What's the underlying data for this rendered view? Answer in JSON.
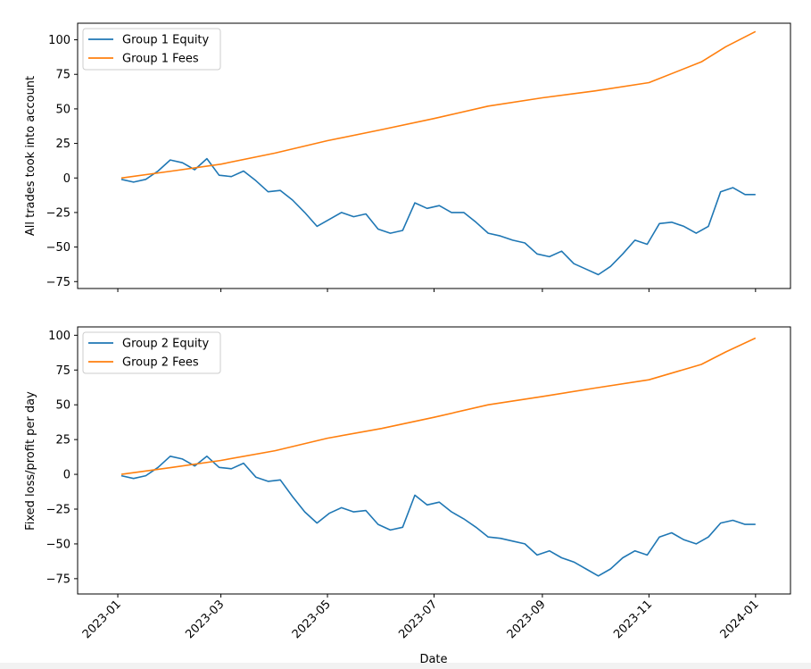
{
  "chart_data": [
    {
      "type": "line",
      "ylabel": "All trades took into account",
      "xlabel": "",
      "ylim": [
        -80,
        112
      ],
      "yticks": [
        "100",
        "75",
        "50",
        "25",
        "0",
        "−25",
        "−50",
        "−75"
      ],
      "legend_position": "upper-left",
      "grid": false,
      "series": [
        {
          "name": "Group 1 Equity",
          "color": "#1f77b4",
          "x": [
            "2023-01-03",
            "2023-01-10",
            "2023-01-17",
            "2023-01-24",
            "2023-01-31",
            "2023-02-07",
            "2023-02-14",
            "2023-02-21",
            "2023-02-28",
            "2023-03-07",
            "2023-03-14",
            "2023-03-21",
            "2023-03-28",
            "2023-04-04",
            "2023-04-11",
            "2023-04-18",
            "2023-04-25",
            "2023-05-02",
            "2023-05-09",
            "2023-05-16",
            "2023-05-23",
            "2023-05-30",
            "2023-06-06",
            "2023-06-13",
            "2023-06-20",
            "2023-06-27",
            "2023-07-04",
            "2023-07-11",
            "2023-07-18",
            "2023-07-25",
            "2023-08-01",
            "2023-08-08",
            "2023-08-15",
            "2023-08-22",
            "2023-08-29",
            "2023-09-05",
            "2023-09-12",
            "2023-09-19",
            "2023-09-26",
            "2023-10-03",
            "2023-10-10",
            "2023-10-17",
            "2023-10-24",
            "2023-10-31",
            "2023-11-07",
            "2023-11-14",
            "2023-11-21",
            "2023-11-28",
            "2023-12-05",
            "2023-12-12",
            "2023-12-19",
            "2023-12-26",
            "2024-01-01"
          ],
          "values": [
            -1,
            -3,
            -1,
            5,
            13,
            11,
            6,
            14,
            2,
            1,
            5,
            -2,
            -10,
            -9,
            -16,
            -25,
            -35,
            -30,
            -25,
            -28,
            -26,
            -37,
            -40,
            -38,
            -18,
            -22,
            -20,
            -25,
            -25,
            -32,
            -40,
            -42,
            -45,
            -47,
            -55,
            -57,
            -53,
            -62,
            -66,
            -70,
            -64,
            -55,
            -45,
            -48,
            -33,
            -32,
            -35,
            -40,
            -35,
            -10,
            -7,
            -12,
            -12
          ]
        },
        {
          "name": "Group 1 Fees",
          "color": "#ff7f0e",
          "x": [
            "2023-01-03",
            "2023-02-01",
            "2023-03-01",
            "2023-04-01",
            "2023-05-01",
            "2023-06-01",
            "2023-07-01",
            "2023-08-01",
            "2023-09-01",
            "2023-10-01",
            "2023-11-01",
            "2023-12-01",
            "2023-12-15",
            "2024-01-01"
          ],
          "values": [
            0,
            5,
            10,
            18,
            27,
            35,
            43,
            52,
            58,
            63,
            69,
            84,
            95,
            106
          ]
        }
      ]
    },
    {
      "type": "line",
      "ylabel": "Fixed loss/profit per day",
      "xlabel": "Date",
      "ylim": [
        -86,
        106
      ],
      "yticks": [
        "100",
        "75",
        "50",
        "25",
        "0",
        "−25",
        "−50",
        "−75"
      ],
      "xticks": [
        "2023-01",
        "2023-03",
        "2023-05",
        "2023-07",
        "2023-09",
        "2023-11",
        "2024-01"
      ],
      "legend_position": "upper-left",
      "grid": false,
      "series": [
        {
          "name": "Group 2 Equity",
          "color": "#1f77b4",
          "x": [
            "2023-01-03",
            "2023-01-10",
            "2023-01-17",
            "2023-01-24",
            "2023-01-31",
            "2023-02-07",
            "2023-02-14",
            "2023-02-21",
            "2023-02-28",
            "2023-03-07",
            "2023-03-14",
            "2023-03-21",
            "2023-03-28",
            "2023-04-04",
            "2023-04-11",
            "2023-04-18",
            "2023-04-25",
            "2023-05-02",
            "2023-05-09",
            "2023-05-16",
            "2023-05-23",
            "2023-05-30",
            "2023-06-06",
            "2023-06-13",
            "2023-06-20",
            "2023-06-27",
            "2023-07-04",
            "2023-07-11",
            "2023-07-18",
            "2023-07-25",
            "2023-08-01",
            "2023-08-08",
            "2023-08-15",
            "2023-08-22",
            "2023-08-29",
            "2023-09-05",
            "2023-09-12",
            "2023-09-19",
            "2023-09-26",
            "2023-10-03",
            "2023-10-10",
            "2023-10-17",
            "2023-10-24",
            "2023-10-31",
            "2023-11-07",
            "2023-11-14",
            "2023-11-21",
            "2023-11-28",
            "2023-12-05",
            "2023-12-12",
            "2023-12-19",
            "2023-12-26",
            "2024-01-01"
          ],
          "values": [
            -1,
            -3,
            -1,
            5,
            13,
            11,
            6,
            13,
            5,
            4,
            8,
            -2,
            -5,
            -4,
            -16,
            -27,
            -35,
            -28,
            -24,
            -27,
            -26,
            -36,
            -40,
            -38,
            -15,
            -22,
            -20,
            -27,
            -32,
            -38,
            -45,
            -46,
            -48,
            -50,
            -58,
            -55,
            -60,
            -63,
            -68,
            -73,
            -68,
            -60,
            -55,
            -58,
            -45,
            -42,
            -47,
            -50,
            -45,
            -35,
            -33,
            -36,
            -36
          ]
        },
        {
          "name": "Group 2 Fees",
          "color": "#ff7f0e",
          "x": [
            "2023-01-03",
            "2023-02-01",
            "2023-03-01",
            "2023-04-01",
            "2023-05-01",
            "2023-06-01",
            "2023-07-01",
            "2023-08-01",
            "2023-09-01",
            "2023-10-01",
            "2023-11-01",
            "2023-12-01",
            "2023-12-15",
            "2024-01-01"
          ],
          "values": [
            0,
            5,
            10,
            17,
            26,
            33,
            41,
            50,
            56,
            62,
            68,
            79,
            88,
            98
          ]
        }
      ]
    }
  ]
}
